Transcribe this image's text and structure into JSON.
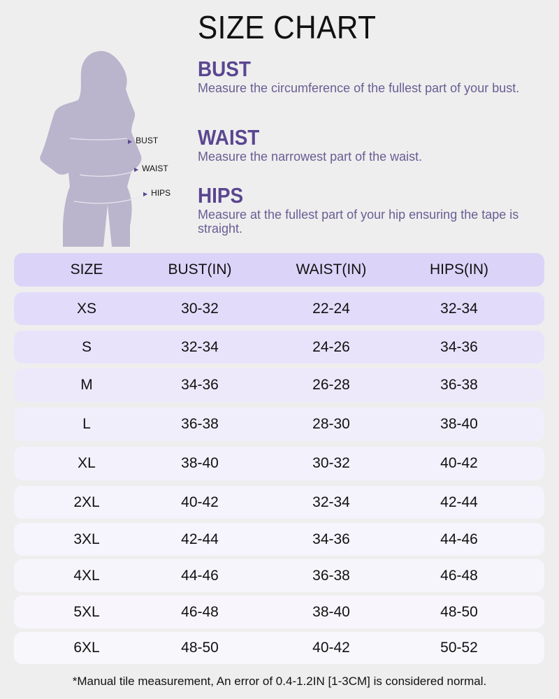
{
  "title": "SIZE CHART",
  "figure_labels": {
    "bust": "BUST",
    "waist": "WAIST",
    "hips": "HIPS"
  },
  "sections": [
    {
      "heading": "BUST",
      "text": "Measure the circumference of the fullest part of your bust."
    },
    {
      "heading": "WAIST",
      "text": "Measure the narrowest part of the waist."
    },
    {
      "heading": "HIPS",
      "text": "Measure at the fullest part of your hip ensuring the tape is straight."
    }
  ],
  "table": {
    "headers": [
      "SIZE",
      "BUST(IN)",
      "WAIST(IN)",
      "HIPS(IN)"
    ],
    "rows": [
      [
        "XS",
        "30-32",
        "22-24",
        "32-34"
      ],
      [
        "S",
        "32-34",
        "24-26",
        "34-36"
      ],
      [
        "M",
        "34-36",
        "26-28",
        "36-38"
      ],
      [
        "L",
        "36-38",
        "28-30",
        "38-40"
      ],
      [
        "XL",
        "38-40",
        "30-32",
        "40-42"
      ],
      [
        "2XL",
        "40-42",
        "32-34",
        "42-44"
      ],
      [
        "3XL",
        "42-44",
        "34-36",
        "44-46"
      ],
      [
        "4XL",
        "44-46",
        "36-38",
        "46-48"
      ],
      [
        "5XL",
        "46-48",
        "38-40",
        "48-50"
      ],
      [
        "6XL",
        "48-50",
        "40-42",
        "50-52"
      ]
    ]
  },
  "footnote": "*Manual tile measurement, An error of 0.4-1.2IN [1-3CM] is considered normal.",
  "colors": {
    "accent": "#5a4690",
    "header_row": "#dcd3f8",
    "silhouette": "#bab4cc",
    "background": "#eeeeee"
  }
}
